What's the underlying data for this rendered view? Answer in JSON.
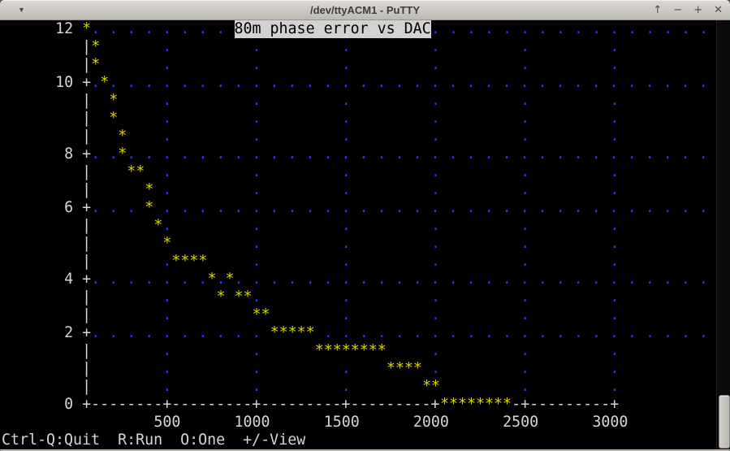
{
  "window": {
    "title": "/dev/ttyACM1 - PuTTY",
    "menu_glyph": "▼",
    "buttons": {
      "rollup": "↑",
      "minimize": "−",
      "maximize": "+",
      "close": "✕"
    }
  },
  "colors": {
    "terminal_bg": "#000000",
    "foreground": "#d6d6d6",
    "plot_points": "#d6d600",
    "grid_dots": "#3535e2",
    "title_inverse_bg": "#d2d2d2"
  },
  "terminal": {
    "cols": 80,
    "rows_count": 24,
    "plot_title": "80m phase error vs DAC",
    "status_line": "Ctrl-Q:Quit  R:Run  O:One  +/-View",
    "y_axis_labels": [
      "12",
      "10",
      "8",
      "6",
      "4",
      "2",
      "0"
    ],
    "x_axis_labels": [
      "500",
      "1000",
      "1500",
      "2000",
      "2500",
      "3000"
    ],
    "rows": [
      {
        "segs": [
          {
            "col": 6,
            "t": "12",
            "c": "w"
          },
          {
            "col": 9,
            "t": "*",
            "c": "y"
          },
          {
            "col": 10,
            "dots": 8,
            "c": "b"
          },
          {
            "col": 26,
            "t": "80m phase error vs DAC",
            "c": "inv"
          },
          {
            "col": 48,
            "dots": 16,
            "c": "b"
          }
        ]
      },
      {
        "segs": [
          {
            "col": 9,
            "t": "|",
            "c": "w"
          },
          {
            "col": 10,
            "t": "*",
            "c": "y"
          }
        ],
        "dotcols": [
          18,
          28,
          38,
          48,
          58,
          68
        ]
      },
      {
        "segs": [
          {
            "col": 9,
            "t": "|",
            "c": "w"
          },
          {
            "col": 10,
            "t": "*",
            "c": "y"
          }
        ],
        "dotcols": [
          18,
          28,
          38,
          48,
          58,
          68
        ]
      },
      {
        "segs": [
          {
            "col": 6,
            "t": "10",
            "c": "w"
          },
          {
            "col": 9,
            "t": "+",
            "c": "w"
          },
          {
            "col": 10,
            "dots": 1,
            "c": "b"
          },
          {
            "col": 11,
            "t": "*",
            "c": "y"
          },
          {
            "col": 12,
            "dots": 34,
            "c": "b"
          }
        ]
      },
      {
        "segs": [
          {
            "col": 9,
            "t": "|",
            "c": "w"
          },
          {
            "col": 12,
            "t": "*",
            "c": "y"
          }
        ],
        "dotcols": [
          18,
          28,
          38,
          48,
          58,
          68
        ]
      },
      {
        "segs": [
          {
            "col": 9,
            "t": "|",
            "c": "w"
          },
          {
            "col": 12,
            "t": "*",
            "c": "y"
          }
        ],
        "dotcols": [
          18,
          28,
          38,
          48,
          58,
          68
        ]
      },
      {
        "segs": [
          {
            "col": 9,
            "t": "|",
            "c": "w"
          },
          {
            "col": 13,
            "t": "*",
            "c": "y"
          }
        ],
        "dotcols": [
          18,
          28,
          38,
          48,
          58,
          68
        ]
      },
      {
        "segs": [
          {
            "col": 7,
            "t": "8",
            "c": "w"
          },
          {
            "col": 9,
            "t": "+",
            "c": "w"
          },
          {
            "col": 10,
            "dots": 2,
            "c": "b"
          },
          {
            "col": 13,
            "t": "*",
            "c": "y"
          },
          {
            "col": 14,
            "dots": 33,
            "c": "b"
          }
        ]
      },
      {
        "segs": [
          {
            "col": 9,
            "t": "|",
            "c": "w"
          },
          {
            "col": 14,
            "t": "**",
            "c": "y"
          }
        ],
        "dotcols": [
          18,
          28,
          38,
          48,
          58,
          68
        ]
      },
      {
        "segs": [
          {
            "col": 9,
            "t": "|",
            "c": "w"
          },
          {
            "col": 16,
            "t": "*",
            "c": "y"
          }
        ],
        "dotcols": [
          18,
          28,
          38,
          48,
          58,
          68
        ]
      },
      {
        "segs": [
          {
            "col": 7,
            "t": "6",
            "c": "w"
          },
          {
            "col": 9,
            "t": "+",
            "c": "w"
          },
          {
            "col": 10,
            "dots": 3,
            "c": "b"
          },
          {
            "col": 16,
            "t": "*",
            "c": "y"
          },
          {
            "col": 18,
            "dots": 31,
            "c": "b"
          }
        ]
      },
      {
        "segs": [
          {
            "col": 9,
            "t": "|",
            "c": "w"
          },
          {
            "col": 17,
            "t": "*",
            "c": "y"
          }
        ],
        "dotcols": [
          18,
          28,
          38,
          48,
          58,
          68
        ]
      },
      {
        "segs": [
          {
            "col": 9,
            "t": "|",
            "c": "w"
          },
          {
            "col": 18,
            "t": "*",
            "c": "y"
          }
        ],
        "dotcols": [
          28,
          38,
          48,
          58,
          68
        ]
      },
      {
        "segs": [
          {
            "col": 9,
            "t": "|",
            "c": "w"
          },
          {
            "col": 19,
            "t": "****",
            "c": "y"
          }
        ],
        "dotcols": [
          18,
          28,
          38,
          48,
          58,
          68
        ]
      },
      {
        "segs": [
          {
            "col": 7,
            "t": "4",
            "c": "w"
          },
          {
            "col": 9,
            "t": "+",
            "c": "w"
          },
          {
            "col": 10,
            "dots": 7,
            "c": "b"
          },
          {
            "col": 23,
            "t": "*",
            "c": "y"
          },
          {
            "col": 24,
            "dots": 1,
            "c": "b"
          },
          {
            "col": 25,
            "t": "*",
            "c": "y"
          },
          {
            "col": 26,
            "dots": 27,
            "c": "b"
          }
        ]
      },
      {
        "segs": [
          {
            "col": 9,
            "t": "|",
            "c": "w"
          },
          {
            "col": 24,
            "t": "*",
            "c": "y"
          },
          {
            "col": 26,
            "t": "**",
            "c": "y"
          }
        ],
        "dotcols": [
          18,
          28,
          38,
          48,
          58,
          68
        ]
      },
      {
        "segs": [
          {
            "col": 9,
            "t": "|",
            "c": "w"
          },
          {
            "col": 28,
            "t": "**",
            "c": "y"
          }
        ],
        "dotcols": [
          18,
          38,
          48,
          58,
          68
        ]
      },
      {
        "segs": [
          {
            "col": 7,
            "t": "2",
            "c": "w"
          },
          {
            "col": 9,
            "t": "+",
            "c": "w"
          },
          {
            "col": 10,
            "dots": 10,
            "c": "b"
          },
          {
            "col": 30,
            "t": "*****",
            "c": "y"
          },
          {
            "col": 36,
            "dots": 22,
            "c": "b"
          }
        ]
      },
      {
        "segs": [
          {
            "col": 9,
            "t": "|",
            "c": "w"
          },
          {
            "col": 35,
            "t": "********",
            "c": "y"
          }
        ],
        "dotcols": [
          18,
          28,
          48,
          58,
          68
        ]
      },
      {
        "segs": [
          {
            "col": 9,
            "t": "|",
            "c": "w"
          },
          {
            "col": 43,
            "t": "****",
            "c": "y"
          }
        ],
        "dotcols": [
          18,
          28,
          38,
          48,
          58,
          68
        ]
      },
      {
        "segs": [
          {
            "col": 9,
            "t": "|",
            "c": "w"
          },
          {
            "col": 47,
            "t": "**",
            "c": "y"
          }
        ],
        "dotcols": [
          18,
          28,
          38,
          58,
          68
        ]
      },
      {
        "segs": [
          {
            "col": 7,
            "t": "0",
            "c": "w"
          },
          {
            "col": 9,
            "t": "+--------+---------+---------+---------+",
            "c": "w"
          },
          {
            "col": 49,
            "t": "********",
            "c": "y"
          },
          {
            "col": 57,
            "t": "-+---------+",
            "c": "w"
          }
        ]
      },
      {
        "segs": [
          {
            "col": 17,
            "t": "500",
            "c": "w"
          },
          {
            "col": 26,
            "t": "1000",
            "c": "w"
          },
          {
            "col": 36,
            "t": "1500",
            "c": "w"
          },
          {
            "col": 46,
            "t": "2000",
            "c": "w"
          },
          {
            "col": 56,
            "t": "2500",
            "c": "w"
          },
          {
            "col": 66,
            "t": "3000",
            "c": "w"
          }
        ]
      },
      {
        "segs": [
          {
            "col": 0,
            "t": "Ctrl-Q:Quit  R:Run  O:One  +/-View",
            "c": "w"
          }
        ]
      }
    ]
  },
  "chart_data": {
    "type": "scatter",
    "title": "80m phase error vs DAC",
    "xlabel": "DAC",
    "ylabel": "phase error",
    "xlim": [
      0,
      3000
    ],
    "ylim": [
      0,
      12
    ],
    "x_ticks": [
      500,
      1000,
      1500,
      2000,
      2500,
      3000
    ],
    "y_ticks": [
      0,
      2,
      4,
      6,
      8,
      10,
      12
    ],
    "grid": true,
    "marker": "*",
    "points": [
      [
        50,
        12
      ],
      [
        100,
        11.4
      ],
      [
        100,
        10.9
      ],
      [
        150,
        10.3
      ],
      [
        200,
        9.7
      ],
      [
        200,
        9.1
      ],
      [
        250,
        8.6
      ],
      [
        250,
        8.0
      ],
      [
        300,
        7.4
      ],
      [
        350,
        7.4
      ],
      [
        400,
        6.9
      ],
      [
        400,
        6.3
      ],
      [
        450,
        5.7
      ],
      [
        500,
        5.1
      ],
      [
        550,
        4.6
      ],
      [
        600,
        4.6
      ],
      [
        650,
        4.6
      ],
      [
        700,
        4.6
      ],
      [
        750,
        4.0
      ],
      [
        850,
        4.0
      ],
      [
        800,
        3.4
      ],
      [
        900,
        3.4
      ],
      [
        950,
        3.4
      ],
      [
        1000,
        2.9
      ],
      [
        1050,
        2.9
      ],
      [
        1100,
        2.3
      ],
      [
        1150,
        2.3
      ],
      [
        1200,
        2.3
      ],
      [
        1250,
        2.3
      ],
      [
        1300,
        2.3
      ],
      [
        1350,
        1.7
      ],
      [
        1400,
        1.7
      ],
      [
        1450,
        1.7
      ],
      [
        1500,
        1.7
      ],
      [
        1550,
        1.7
      ],
      [
        1600,
        1.7
      ],
      [
        1650,
        1.7
      ],
      [
        1700,
        1.7
      ],
      [
        1750,
        1.1
      ],
      [
        1800,
        1.1
      ],
      [
        1850,
        1.1
      ],
      [
        1900,
        1.1
      ],
      [
        1950,
        0.6
      ],
      [
        2000,
        0.6
      ],
      [
        2050,
        0
      ],
      [
        2100,
        0
      ],
      [
        2150,
        0
      ],
      [
        2200,
        0
      ],
      [
        2250,
        0
      ],
      [
        2300,
        0
      ],
      [
        2350,
        0
      ],
      [
        2400,
        0
      ]
    ]
  }
}
